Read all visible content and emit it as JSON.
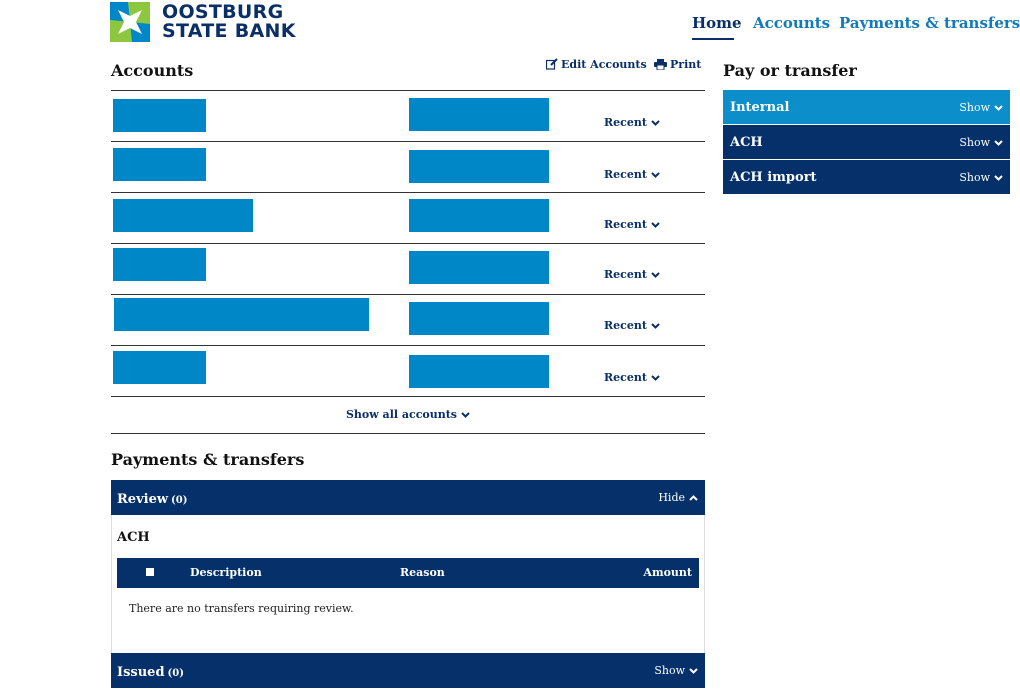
{
  "brand": {
    "line1": "OOSTBURG",
    "line2": "STATE BANK",
    "colors": {
      "navy": "#0a2f67",
      "green": "#8dc63f",
      "blue": "#0087c8"
    }
  },
  "nav": {
    "home": "Home",
    "accounts": "Accounts",
    "payments": "Payments & transfers"
  },
  "accounts": {
    "title": "Accounts",
    "edit_label": "Edit Accounts",
    "print_label": "Print",
    "recent_label": "Recent",
    "show_all_label": "Show all accounts"
  },
  "pay_or_transfer": {
    "title": "Pay or transfer",
    "items": [
      {
        "label": "Internal",
        "toggle": "Show"
      },
      {
        "label": "ACH",
        "toggle": "Show"
      },
      {
        "label": "ACH import",
        "toggle": "Show"
      }
    ]
  },
  "payments": {
    "title": "Payments & transfers",
    "review": {
      "label": "Review",
      "count": "(0)",
      "toggle": "Hide"
    },
    "ach_title": "ACH",
    "columns": {
      "description": "Description",
      "reason": "Reason",
      "amount": "Amount"
    },
    "empty_message": "There are no transfers requiring review.",
    "issued": {
      "label": "Issued",
      "count": "(0)",
      "toggle": "Show"
    }
  }
}
